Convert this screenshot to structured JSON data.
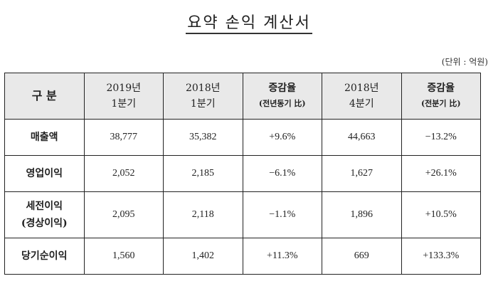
{
  "title": "요약 손익 계산서",
  "unit": "(단위 : 억원)",
  "headers": [
    {
      "line1": "구  분",
      "line2": ""
    },
    {
      "line1": "2019년",
      "line2": "1분기"
    },
    {
      "line1": "2018년",
      "line2": "1분기"
    },
    {
      "line1": "증감율",
      "line2": "(전년동기 比)"
    },
    {
      "line1": "2018년",
      "line2": "4분기"
    },
    {
      "line1": "증감율",
      "line2": "(전분기 比)"
    }
  ],
  "rows": [
    {
      "label": "매출액",
      "label2": "",
      "values": [
        "38,777",
        "35,382",
        "+9.6%",
        "44,663",
        "−13.2%"
      ]
    },
    {
      "label": "영업이익",
      "label2": "",
      "values": [
        "2,052",
        "2,185",
        "−6.1%",
        "1,627",
        "+26.1%"
      ]
    },
    {
      "label": "세전이익",
      "label2": "(경상이익)",
      "values": [
        "2,095",
        "2,118",
        "−1.1%",
        "1,896",
        "+10.5%"
      ]
    },
    {
      "label": "당기순이익",
      "label2": "",
      "values": [
        "1,560",
        "1,402",
        "+11.3%",
        "669",
        "+133.3%"
      ]
    }
  ]
}
